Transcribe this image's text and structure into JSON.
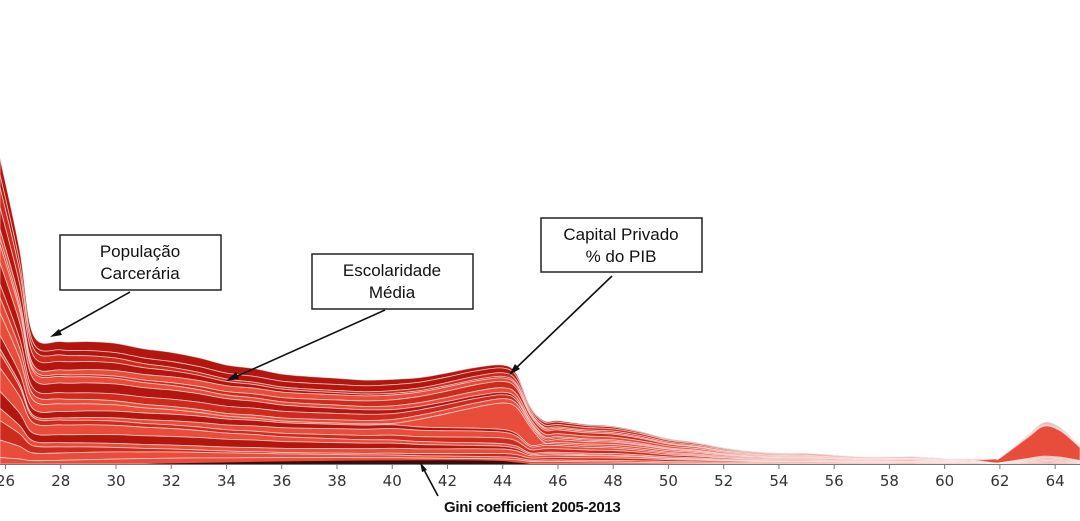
{
  "chart_data": {
    "type": "area",
    "subtype": "streamgraph",
    "xlabel": "Gini coefficient 2005-2013",
    "x_ticks": [
      26,
      28,
      30,
      32,
      34,
      36,
      38,
      40,
      42,
      44,
      46,
      48,
      50,
      52,
      54,
      56,
      58,
      60,
      62,
      64
    ],
    "xlim": [
      25.8,
      64.9
    ],
    "x": [
      25.8,
      26.5,
      27,
      28,
      29,
      30,
      31,
      32,
      33,
      34,
      35,
      36,
      37,
      38,
      39,
      40,
      41,
      42,
      43,
      44,
      44.5,
      45,
      45.5,
      46,
      47,
      48,
      49,
      50,
      51,
      52,
      53,
      54,
      55,
      56,
      57,
      58,
      59,
      60,
      61,
      61.8,
      62,
      63,
      63.6,
      64.2,
      64.9
    ],
    "total_height_relative": [
      0.85,
      0.6,
      0.36,
      0.34,
      0.34,
      0.335,
      0.32,
      0.31,
      0.295,
      0.275,
      0.265,
      0.25,
      0.243,
      0.238,
      0.233,
      0.235,
      0.24,
      0.253,
      0.268,
      0.275,
      0.25,
      0.16,
      0.12,
      0.12,
      0.11,
      0.105,
      0.09,
      0.07,
      0.06,
      0.045,
      0.035,
      0.03,
      0.03,
      0.025,
      0.02,
      0.02,
      0.02,
      0.015,
      0.015,
      0.015,
      0.018,
      0.08,
      0.115,
      0.1,
      0.05
    ],
    "num_layers": 20,
    "colors": {
      "dark": "#b3160f",
      "mid": "#cc2b1d",
      "light": "#e84c3a",
      "base": "#3a0e0c",
      "separator": "#ffffff"
    },
    "annotations": [
      {
        "text_lines": [
          "População",
          "Carcerária"
        ],
        "points_to_x": 27.6
      },
      {
        "text_lines": [
          "Escolaridade",
          "Média"
        ],
        "points_to_x": 33.9
      },
      {
        "text_lines": [
          "Capital Privado",
          "% do PIB"
        ],
        "points_to_x": 44.2
      }
    ]
  }
}
